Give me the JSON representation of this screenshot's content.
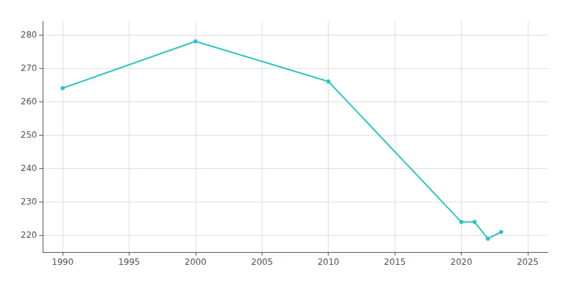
{
  "chart_data": {
    "type": "line",
    "x": [
      1990,
      2000,
      2010,
      2020,
      2021,
      2022,
      2023
    ],
    "values": [
      264,
      278,
      266,
      224,
      224,
      219,
      221
    ],
    "color": "#2EC4C4",
    "marker": "circle",
    "xlim": [
      1988.5,
      2026.5
    ],
    "xticks": [
      1990,
      1995,
      2000,
      2005,
      2010,
      2015,
      2020,
      2025
    ],
    "ylim": [
      215,
      284
    ],
    "yticks": [
      220,
      230,
      240,
      250,
      260,
      270,
      280
    ],
    "grid": true
  }
}
